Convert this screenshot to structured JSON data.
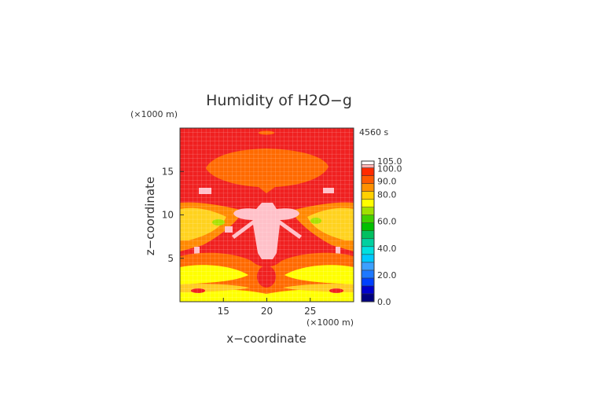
{
  "chart_data": {
    "type": "heatmap",
    "title": "Humidity of H2O−g",
    "time_label": "4560 s",
    "xlabel": "x−coordinate",
    "ylabel": "z−coordinate",
    "x_unit": "(×1000 m)",
    "y_unit": "(×1000 m)",
    "xlim": [
      10,
      30
    ],
    "ylim": [
      0,
      20
    ],
    "x_ticks": [
      15,
      20,
      25
    ],
    "y_ticks": [
      5,
      10,
      15
    ],
    "grid": true,
    "colorbar": {
      "levels": [
        0.0,
        20.0,
        40.0,
        60.0,
        80.0,
        90.0,
        100.0,
        105.0
      ],
      "tick_labels": [
        "0.0",
        "20.0",
        "40.0",
        "60.0",
        "80.0",
        "90.0",
        "100.0",
        "105.0"
      ],
      "colors": [
        "#000080",
        "#0000cd",
        "#0040ff",
        "#1e78ff",
        "#3ca0ff",
        "#00c8ff",
        "#00e0e0",
        "#00d0a0",
        "#00c060",
        "#00c000",
        "#40d000",
        "#a0e000",
        "#ffff00",
        "#ffd000",
        "#ff9000",
        "#ff5a00",
        "#ff2a00",
        "#ffb4b4",
        "#ffffff"
      ]
    },
    "field_colors": {
      "background": "#f02020",
      "anvil": "#ff6a00",
      "moist_band": "#ffcc22",
      "dry_band": "#ffff00",
      "saturated": "#ffc0c8",
      "green_patch": "#a8e000"
    }
  }
}
